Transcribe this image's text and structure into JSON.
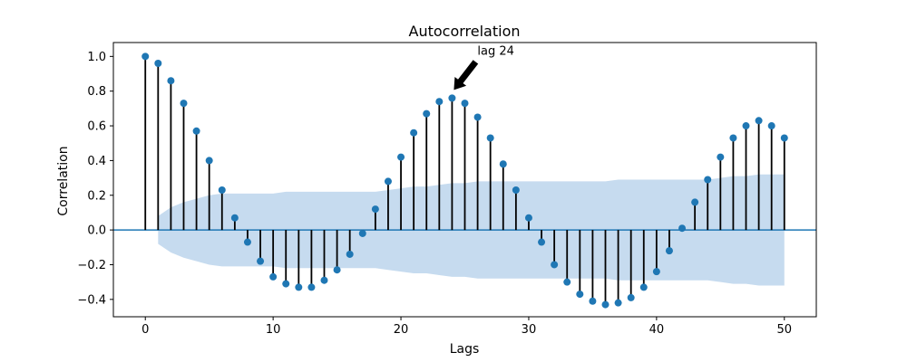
{
  "chart_data": {
    "type": "stem",
    "title": "Autocorrelation",
    "xlabel": "Lags",
    "ylabel": "Correlation",
    "xlim": [
      -2.5,
      52.5
    ],
    "ylim": [
      -0.5,
      1.08
    ],
    "xticks": [
      0,
      10,
      20,
      30,
      40,
      50
    ],
    "yticks": [
      -0.4,
      -0.2,
      0.0,
      0.2,
      0.4,
      0.6,
      0.8,
      1.0
    ],
    "xtick_labels": [
      "0",
      "10",
      "20",
      "30",
      "40",
      "50"
    ],
    "ytick_labels": [
      "−0.4",
      "−0.2",
      "0.0",
      "0.2",
      "0.4",
      "0.6",
      "0.8",
      "1.0"
    ],
    "grid": false,
    "lags": [
      0,
      1,
      2,
      3,
      4,
      5,
      6,
      7,
      8,
      9,
      10,
      11,
      12,
      13,
      14,
      15,
      16,
      17,
      18,
      19,
      20,
      21,
      22,
      23,
      24,
      25,
      26,
      27,
      28,
      29,
      30,
      31,
      32,
      33,
      34,
      35,
      36,
      37,
      38,
      39,
      40,
      41,
      42,
      43,
      44,
      45,
      46,
      47,
      48,
      49,
      50
    ],
    "values": [
      1.0,
      0.96,
      0.86,
      0.73,
      0.57,
      0.4,
      0.23,
      0.07,
      -0.07,
      -0.18,
      -0.27,
      -0.31,
      -0.33,
      -0.33,
      -0.29,
      -0.23,
      -0.14,
      -0.02,
      0.12,
      0.28,
      0.42,
      0.56,
      0.67,
      0.74,
      0.76,
      0.73,
      0.65,
      0.53,
      0.38,
      0.23,
      0.07,
      -0.07,
      -0.2,
      -0.3,
      -0.37,
      -0.41,
      -0.43,
      -0.42,
      -0.39,
      -0.33,
      -0.24,
      -0.12,
      0.01,
      0.16,
      0.29,
      0.42,
      0.53,
      0.6,
      0.63,
      0.6,
      0.53
    ],
    "confidence_band_upper": [
      0.0,
      0.08,
      0.13,
      0.16,
      0.18,
      0.2,
      0.21,
      0.21,
      0.21,
      0.21,
      0.21,
      0.22,
      0.22,
      0.22,
      0.22,
      0.22,
      0.22,
      0.22,
      0.22,
      0.23,
      0.24,
      0.25,
      0.25,
      0.26,
      0.27,
      0.27,
      0.28,
      0.28,
      0.28,
      0.28,
      0.28,
      0.28,
      0.28,
      0.28,
      0.28,
      0.28,
      0.28,
      0.29,
      0.29,
      0.29,
      0.29,
      0.29,
      0.29,
      0.29,
      0.29,
      0.3,
      0.31,
      0.31,
      0.32,
      0.32,
      0.32
    ],
    "annotation": {
      "text": "lag 24",
      "lag": 24
    },
    "colors": {
      "marker": "#1f77b4",
      "stem": "#000000",
      "band": "#c6dbef",
      "zero_line": "#1f77b4"
    }
  }
}
